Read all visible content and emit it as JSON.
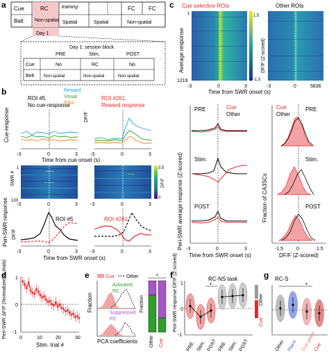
{
  "panel_letters": {
    "a": "a",
    "b": "b",
    "c": "c",
    "d": "d",
    "e": "e",
    "f": "f",
    "g": "g"
  },
  "panel_a": {
    "row_cue": "Cue",
    "row_belt": "Belt",
    "stage_rc": "RC",
    "stage_training": "training",
    "stage_fc1": "FC",
    "stage_fc2": "FC",
    "belt_nonspatial": "Non-spatial",
    "belt_spatial1": "Spatial",
    "belt_spatial2": "Spatial",
    "belt_nonspatial2": "Non-spatial",
    "day1": "Day 1",
    "session_title": "Day 1: session block",
    "pre": "PRE",
    "stim": "Stim.",
    "post": "POST",
    "cue_no1": "No",
    "cue_rc": "RC",
    "cue_no2": "No",
    "belt_ns1": "Non-spatial",
    "belt_ns2": "Non-spatial",
    "belt_ns3": "Non-spatial"
  },
  "panel_b": {
    "roi5_title": "ROI #5",
    "roi5_sub": "No cue-response",
    "roi261_title": "ROI #261",
    "roi261_sub": "Reward response",
    "legend_reward": "Reward",
    "legend_visual": "Visual",
    "legend_odor": "Odor",
    "ylabel_cue": "Cue-response",
    "ylabel_dff": "DF/F",
    "xlabel_cue": "Time from cue onset (s)",
    "xticks": [
      "-3",
      "0",
      "3",
      "-3",
      "0",
      "3"
    ],
    "swr_label": "SWR #",
    "swr_first": "1",
    "swr_last": "133",
    "cbar_label": "DF/F",
    "cbar_max": "3.5",
    "cbar_min": "0",
    "heat_xticks": [
      "-3",
      "0",
      "3",
      "-3",
      "0",
      "3"
    ],
    "ylabel_swr": "Peri-SWR response",
    "ylabel_dff2": "DF/F",
    "roi5_lbl": "ROI #5",
    "roi261_lbl": "ROI #261",
    "xlabel_swr": "Time from SWR onset (s)",
    "colors": {
      "reward": "#1fa0e0",
      "visual": "#2ca02c",
      "odor": "#ff7f0e"
    }
  },
  "panel_c": {
    "title_cue": "Cue selective ROIs",
    "title_other": "Other ROIs",
    "ylabel_avg": "Average response",
    "y_first": "1",
    "y_last": "1219",
    "y_last2": "5836",
    "cbar_label": "DF/F (Z-scored)",
    "cbar_max": "1.5",
    "cbar_min": "-1.5",
    "heat_xticks": [
      "-3",
      "0",
      "3"
    ],
    "xlabel_heat": "Time from SWR onset (s)",
    "pre": "PRE",
    "stim": "Stim.",
    "post": "POST",
    "legend_cue": "Cue",
    "legend_other": "Other",
    "ylabel_line": "Peri-SWR average response (Z-scored)",
    "line_xticks": [
      "-3",
      "0",
      "3"
    ],
    "xlabel_line": "Time from SWR onset (s)",
    "ylabel_hist": "Fraction of CA3SCs",
    "hist_xticks": [
      "-1.5",
      "0",
      "1.5"
    ],
    "xlabel_hist": "DF/F (Z-scored)",
    "color_cue": "#e8292b",
    "color_other": "#000000"
  },
  "panel_d": {
    "ylabel": "Peri-SWR ΔF/F (Normalized to trials)",
    "yticks": [
      "1",
      "0",
      "-1"
    ],
    "xticks": [
      "0",
      "10",
      "20",
      "30"
    ],
    "xlabel": "Stim. trial #",
    "chart_data": {
      "type": "line",
      "x": [
        1,
        2,
        3,
        4,
        5,
        6,
        7,
        8,
        9,
        10,
        11,
        12,
        13,
        14,
        15,
        16,
        17,
        18,
        19,
        20,
        21,
        22,
        23,
        24,
        25,
        26,
        27,
        28,
        29,
        30
      ],
      "y": [
        1.0,
        0.85,
        0.7,
        0.95,
        0.6,
        0.5,
        0.45,
        0.65,
        0.55,
        0.4,
        0.3,
        0.35,
        0.2,
        0.1,
        0.15,
        0.0,
        -0.05,
        0.1,
        -0.1,
        0.0,
        -0.15,
        -0.2,
        -0.3,
        -0.25,
        -0.35,
        -0.45,
        -0.4,
        -0.55,
        -0.5,
        -0.6
      ],
      "xlim": [
        0,
        30
      ],
      "ylim": [
        -1.2,
        1.2
      ],
      "color": "#e8292b"
    }
  },
  "panel_e": {
    "legend_cue": "Cue",
    "legend_other": "Other",
    "activated": "Activated",
    "pc1": "PC",
    "suppressed": "Suppressed",
    "pc2": "PC",
    "ylabel": "Fraction",
    "xlabel": "PCA coefficients",
    "bar_ylabel": "Fraction",
    "bar_xlabels": [
      "Other",
      "Cue"
    ],
    "star": "*",
    "colors": {
      "activated": "#2ca02c",
      "suppressed": "#a855c7"
    },
    "chart_data": {
      "type": "bar",
      "categories": [
        "Other",
        "Cue"
      ],
      "series": [
        {
          "name": "Activated",
          "values": [
            0.72,
            0.28
          ]
        },
        {
          "name": "Suppressed",
          "values": [
            0.28,
            0.72
          ]
        }
      ],
      "ylim": [
        0,
        1
      ]
    }
  },
  "panel_f": {
    "title": "RC-NS task",
    "ylabel": "Peri-SWR response DF/F (Z-scored)",
    "yticks": [
      "1",
      "0",
      "-1"
    ],
    "xticks": [
      "PRE",
      "Stim.",
      "POST",
      "PRE",
      "Stim.",
      "POST"
    ],
    "legend_cue": "Cue",
    "legend_other": "Other",
    "star": "*",
    "chart_data": {
      "type": "bar",
      "categories": [
        "PRE",
        "Stim.",
        "POST"
      ],
      "series": [
        {
          "name": "Cue",
          "values": [
            0.1,
            -0.5,
            -0.15
          ]
        },
        {
          "name": "Other",
          "values": [
            0.6,
            0.65,
            0.7
          ]
        }
      ],
      "ylim": [
        -1.5,
        1.5
      ]
    }
  },
  "panel_g": {
    "title": "RC-S",
    "xticks": [
      "Other",
      "Place",
      "Cue-place",
      "Cue"
    ],
    "star": "*",
    "chart_data": {
      "type": "bar",
      "categories": [
        "Other",
        "Place",
        "Cue-place",
        "Cue"
      ],
      "values": [
        0.1,
        0.3,
        -0.1,
        -0.2
      ],
      "colors": [
        "#888888",
        "#3b5bdb",
        "#e87878",
        "#c92a2a"
      ],
      "ylim": [
        -1.5,
        1.5
      ]
    }
  }
}
